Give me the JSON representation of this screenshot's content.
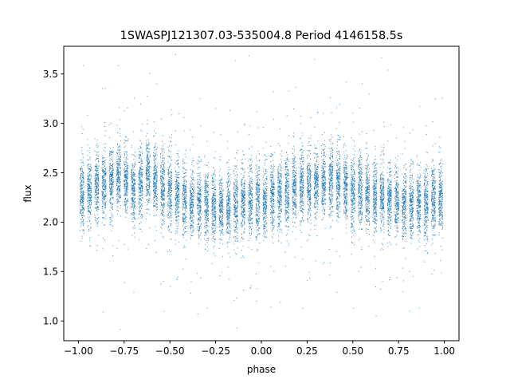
{
  "chart_data": {
    "type": "scatter",
    "title": "1SWASPJ121307.03-535004.8 Period 4146158.5s",
    "xlabel": "phase",
    "ylabel": "flux",
    "xlim": [
      -1.08,
      1.08
    ],
    "ylim": [
      0.8,
      3.78
    ],
    "grid": false,
    "marker_color": "#1f77b4",
    "xticks": [
      -1.0,
      -0.75,
      -0.5,
      -0.25,
      0.0,
      0.25,
      0.5,
      0.75,
      1.0
    ],
    "xtick_labels": [
      "−1.00",
      "−0.75",
      "−0.50",
      "−0.25",
      "0.00",
      "0.25",
      "0.50",
      "0.75",
      "1.00"
    ],
    "yticks": [
      1.0,
      1.5,
      2.0,
      2.5,
      3.0,
      3.5
    ],
    "ytick_labels": [
      "1.0",
      "1.5",
      "2.0",
      "2.5",
      "3.0",
      "3.5"
    ],
    "series": [
      {
        "name": "",
        "point_columns": [
          "phase",
          "flux_center",
          "flux_spread"
        ],
        "point_clusters": [
          [
            -0.98,
            2.28,
            0.28
          ],
          [
            -0.94,
            2.3,
            0.26
          ],
          [
            -0.9,
            2.35,
            0.28
          ],
          [
            -0.86,
            2.38,
            0.27
          ],
          [
            -0.82,
            2.42,
            0.28
          ],
          [
            -0.78,
            2.45,
            0.27
          ],
          [
            -0.74,
            2.42,
            0.26
          ],
          [
            -0.7,
            2.3,
            0.25
          ],
          [
            -0.66,
            2.42,
            0.28
          ],
          [
            -0.62,
            2.48,
            0.28
          ],
          [
            -0.58,
            2.42,
            0.27
          ],
          [
            -0.54,
            2.35,
            0.28
          ],
          [
            -0.5,
            2.3,
            0.3
          ],
          [
            -0.46,
            2.28,
            0.29
          ],
          [
            -0.42,
            2.22,
            0.28
          ],
          [
            -0.38,
            2.2,
            0.27
          ],
          [
            -0.34,
            2.18,
            0.28
          ],
          [
            -0.3,
            2.18,
            0.26
          ],
          [
            -0.26,
            2.16,
            0.27
          ],
          [
            -0.22,
            2.15,
            0.26
          ],
          [
            -0.18,
            2.15,
            0.27
          ],
          [
            -0.14,
            2.18,
            0.28
          ],
          [
            -0.1,
            2.2,
            0.28
          ],
          [
            -0.06,
            2.22,
            0.3
          ],
          [
            -0.02,
            2.22,
            0.3
          ],
          [
            0.02,
            2.2,
            0.28
          ],
          [
            0.06,
            2.25,
            0.28
          ],
          [
            0.1,
            2.28,
            0.27
          ],
          [
            0.14,
            2.3,
            0.28
          ],
          [
            0.18,
            2.35,
            0.28
          ],
          [
            0.22,
            2.38,
            0.28
          ],
          [
            0.26,
            2.35,
            0.27
          ],
          [
            0.3,
            2.38,
            0.26
          ],
          [
            0.34,
            2.4,
            0.28
          ],
          [
            0.38,
            2.42,
            0.28
          ],
          [
            0.42,
            2.4,
            0.28
          ],
          [
            0.46,
            2.35,
            0.28
          ],
          [
            0.5,
            2.3,
            0.29
          ],
          [
            0.54,
            2.3,
            0.3
          ],
          [
            0.58,
            2.28,
            0.28
          ],
          [
            0.62,
            2.26,
            0.27
          ],
          [
            0.66,
            2.26,
            0.27
          ],
          [
            0.7,
            2.22,
            0.27
          ],
          [
            0.74,
            2.2,
            0.26
          ],
          [
            0.78,
            2.18,
            0.26
          ],
          [
            0.82,
            2.17,
            0.27
          ],
          [
            0.86,
            2.18,
            0.26
          ],
          [
            0.9,
            2.2,
            0.28
          ],
          [
            0.94,
            2.22,
            0.28
          ],
          [
            0.98,
            2.24,
            0.28
          ]
        ]
      }
    ]
  }
}
